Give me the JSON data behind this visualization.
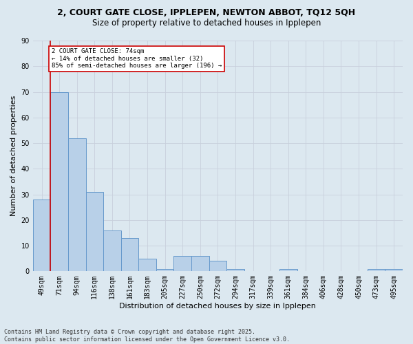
{
  "title_line1": "2, COURT GATE CLOSE, IPPLEPEN, NEWTON ABBOT, TQ12 5QH",
  "title_line2": "Size of property relative to detached houses in Ipplepen",
  "xlabel": "Distribution of detached houses by size in Ipplepen",
  "ylabel": "Number of detached properties",
  "categories": [
    "49sqm",
    "71sqm",
    "94sqm",
    "116sqm",
    "138sqm",
    "161sqm",
    "183sqm",
    "205sqm",
    "227sqm",
    "250sqm",
    "272sqm",
    "294sqm",
    "317sqm",
    "339sqm",
    "361sqm",
    "384sqm",
    "406sqm",
    "428sqm",
    "450sqm",
    "473sqm",
    "495sqm"
  ],
  "values": [
    28,
    70,
    52,
    31,
    16,
    13,
    5,
    1,
    6,
    6,
    4,
    1,
    0,
    0,
    1,
    0,
    0,
    0,
    0,
    1,
    1
  ],
  "bar_color": "#b8d0e8",
  "bar_edge_color": "#6699cc",
  "grid_color": "#c8d0dc",
  "annotation_line_color": "#cc0000",
  "annotation_box_edge_color": "#cc0000",
  "annotation_box_text_line1": "2 COURT GATE CLOSE: 74sqm",
  "annotation_box_text_line2": "← 14% of detached houses are smaller (32)",
  "annotation_box_text_line3": "85% of semi-detached houses are larger (196) →",
  "ylim": [
    0,
    90
  ],
  "yticks": [
    0,
    10,
    20,
    30,
    40,
    50,
    60,
    70,
    80,
    90
  ],
  "bg_color": "#dce8f0",
  "title1_fontsize": 9,
  "title2_fontsize": 8.5,
  "axis_label_fontsize": 8,
  "tick_fontsize": 7,
  "footer_fontsize": 6,
  "footer_line1": "Contains HM Land Registry data © Crown copyright and database right 2025.",
  "footer_line2": "Contains public sector information licensed under the Open Government Licence v3.0."
}
